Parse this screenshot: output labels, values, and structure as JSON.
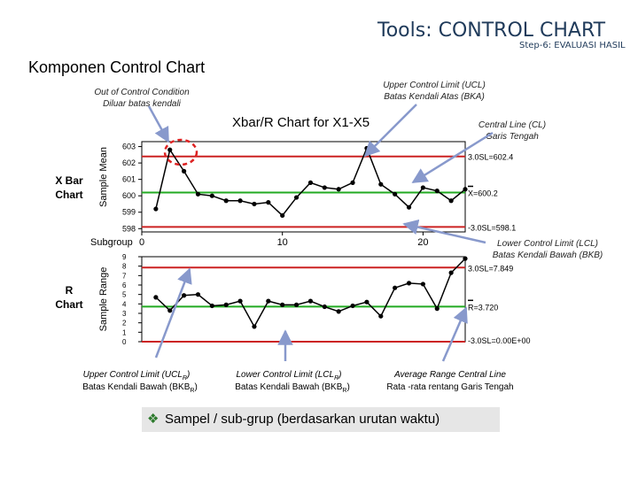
{
  "header": {
    "title": "Tools: CONTROL CHART",
    "step": "Step-6: EVALUASI HASIL"
  },
  "section_title": "Komponen Control Chart",
  "chart_title": "Xbar/R Chart for X1-X5",
  "annotations": {
    "out_of_control": [
      "Out of Control Condition",
      "Diluar batas kendali"
    ],
    "ucl": [
      "Upper Control Limit (UCL)",
      "Batas Kendali Atas (BKA)"
    ],
    "central_line": [
      "Central Line (CL)",
      "Garis Tengah"
    ],
    "lcl": [
      "Lower Control Limit (LCL)",
      "Batas Kendali Bawah (BKB)"
    ],
    "ucl_r_line1": "Upper Control Limit (UCL",
    "ucl_r_sub": "R",
    "ucl_r_close": ")",
    "ucl_r_line2": "Batas Kendali Bawah (BKB",
    "lcl_r_line1": "Lower Control Limit (LCL",
    "lcl_r_sub": "R",
    "lcl_r_close": ")",
    "lcl_r_line2": "Batas Kendali Bawah (BKB",
    "avg_range": [
      "Average Range Central Line",
      "Rata -rata rentang Garis Tengah"
    ]
  },
  "side_labels": {
    "xbar": [
      "X Bar",
      "Chart"
    ],
    "r": [
      "R",
      "Chart"
    ],
    "xbar_axis": "Sample Mean",
    "r_axis": "Sample Range",
    "subgroup": "Subgroup"
  },
  "bottom_note": "Sampel / sub-grup (berdasarkan urutan waktu)",
  "colors": {
    "limit_line": "#cc2222",
    "center_line": "#22aa22",
    "data_line": "#000000",
    "callout_arrow": "#8899cc",
    "circle": "#dd2222"
  },
  "chart_data": [
    {
      "type": "line",
      "name_label": "",
      "x": [
        1,
        2,
        3,
        4,
        5,
        6,
        7,
        8,
        9,
        10,
        11,
        12,
        13,
        14,
        15,
        16,
        17,
        18,
        19,
        20,
        21,
        22,
        23
      ],
      "values": [
        599.2,
        602.8,
        601.5,
        600.1,
        600.0,
        599.7,
        599.7,
        599.5,
        599.6,
        598.8,
        599.9,
        600.8,
        600.5,
        600.4,
        600.8,
        602.9,
        600.7,
        600.1,
        599.3,
        600.5,
        600.3,
        599.7,
        600.4
      ],
      "yticks": [
        598,
        599,
        600,
        601,
        602,
        603
      ],
      "ylim": [
        597.8,
        603.3
      ],
      "xticks": [
        0,
        10,
        20
      ],
      "xlim": [
        0,
        23
      ],
      "ucl": 602.4,
      "center": 600.2,
      "lcl": 598.1,
      "ucl_label": "3.0SL=602.4",
      "center_label": "X=600.2",
      "lcl_label": "-3.0SL=598.1",
      "ylabel": "Sample Mean",
      "xlabel": "Subgroup"
    },
    {
      "type": "line",
      "x": [
        1,
        2,
        3,
        4,
        5,
        6,
        7,
        8,
        9,
        10,
        11,
        12,
        13,
        14,
        15,
        16,
        17,
        18,
        19,
        20,
        21,
        22,
        23
      ],
      "values": [
        4.7,
        3.3,
        4.9,
        5.0,
        3.8,
        3.9,
        4.3,
        1.6,
        4.3,
        3.9,
        3.9,
        4.3,
        3.7,
        3.2,
        3.8,
        4.2,
        2.7,
        5.7,
        6.2,
        6.1,
        3.5,
        7.3,
        8.8
      ],
      "yticks": [
        0,
        1,
        2,
        3,
        4,
        5,
        6,
        7,
        8,
        9
      ],
      "ylim": [
        0,
        9
      ],
      "ucl": 7.849,
      "center": 3.72,
      "lcl": 0,
      "ucl_label": "3.0SL=7.849",
      "center_label": "R=3.720",
      "lcl_label": "-3.0SL=0.00E+00",
      "ylabel": "Sample Range"
    }
  ]
}
